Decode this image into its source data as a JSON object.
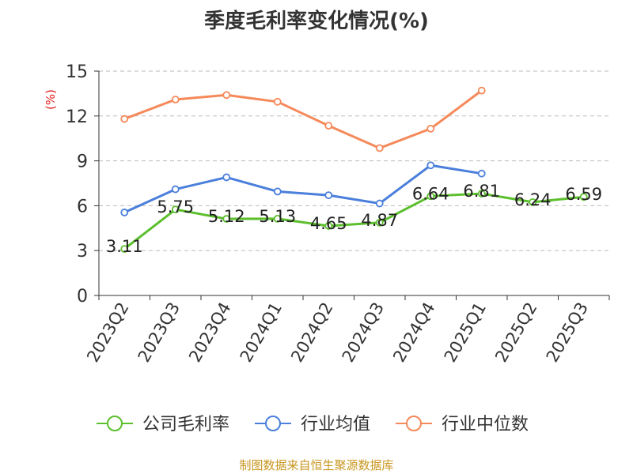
{
  "chart_data": {
    "type": "line",
    "title": "季度毛利率变化情况(%)",
    "ylabel": "(%)",
    "xlabel": "",
    "ylim": [
      0,
      15
    ],
    "yticks": [
      0,
      3,
      6,
      9,
      12,
      15
    ],
    "grid": true,
    "legend_position": "bottom",
    "categories": [
      "2023Q2",
      "2023Q3",
      "2023Q4",
      "2024Q1",
      "2024Q2",
      "2024Q3",
      "2024Q4",
      "2025Q1",
      "2025Q2",
      "2025Q3"
    ],
    "series": [
      {
        "name": "公司毛利率",
        "color": "#5cbf2e",
        "show_labels": true,
        "values": [
          3.11,
          5.75,
          5.12,
          5.13,
          4.65,
          4.87,
          6.64,
          6.81,
          6.24,
          6.59
        ]
      },
      {
        "name": "行业均值",
        "color": "#4a7fdb",
        "show_labels": false,
        "values": [
          5.55,
          7.1,
          7.9,
          6.95,
          6.7,
          6.15,
          8.7,
          8.15,
          null,
          null
        ]
      },
      {
        "name": "行业中位数",
        "color": "#f5895a",
        "show_labels": false,
        "values": [
          11.8,
          13.1,
          13.4,
          12.95,
          11.35,
          9.85,
          11.15,
          13.7,
          null,
          null
        ]
      }
    ]
  },
  "source": "制图数据来自恒生聚源数据库"
}
